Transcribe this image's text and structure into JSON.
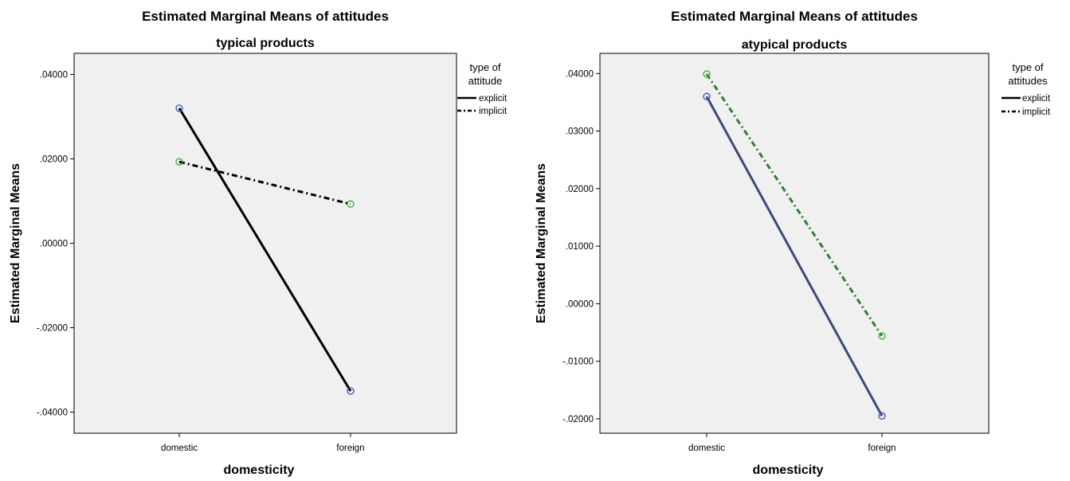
{
  "chart_data": [
    {
      "type": "line",
      "title": "Estimated Marginal Means of attitudes",
      "subtitle": "typical products",
      "xlabel": "domesticity",
      "ylabel": "Estimated Marginal Means",
      "categories": [
        "domestic",
        "foreign"
      ],
      "ylim": [
        -0.045,
        0.045
      ],
      "yticks": [
        0.04,
        0.02,
        0.0,
        -0.02,
        -0.04
      ],
      "ytick_labels": [
        ".04000",
        ".02000",
        ".00000",
        "-.02000",
        "-.04000"
      ],
      "grid": false,
      "legend_title": "type of attitude",
      "legend_placement": "right",
      "series": [
        {
          "name": "explicit",
          "values": [
            0.032,
            -0.035
          ],
          "color": "#000000",
          "marker_color": "#3f51b5",
          "dash": "solid"
        },
        {
          "name": "implicit",
          "values": [
            0.0193,
            0.0093
          ],
          "color": "#000000",
          "marker_color": "#3aaa35",
          "dash": "dashdot"
        }
      ]
    },
    {
      "type": "line",
      "title": "Estimated Marginal Means of attitudes",
      "subtitle": "atypical products",
      "xlabel": "domesticity",
      "ylabel": "Estimated Marginal Means",
      "categories": [
        "domestic",
        "foreign"
      ],
      "ylim": [
        -0.0225,
        0.0435
      ],
      "yticks": [
        0.04,
        0.03,
        0.02,
        0.01,
        0.0,
        -0.01,
        -0.02
      ],
      "ytick_labels": [
        ".04000",
        ".03000",
        ".02000",
        ".01000",
        ".00000",
        "-.01000",
        "-.02000"
      ],
      "grid": false,
      "legend_title": "type of attitudes",
      "legend_placement": "right",
      "series": [
        {
          "name": "explicit",
          "values": [
            0.036,
            -0.0195
          ],
          "color": "#3d4a7a",
          "marker_color": "#3f51b5",
          "dash": "solid"
        },
        {
          "name": "implicit",
          "values": [
            0.0399,
            -0.0056
          ],
          "color": "#2e7d32",
          "marker_color": "#3aaa35",
          "dash": "dashdot"
        }
      ]
    }
  ]
}
